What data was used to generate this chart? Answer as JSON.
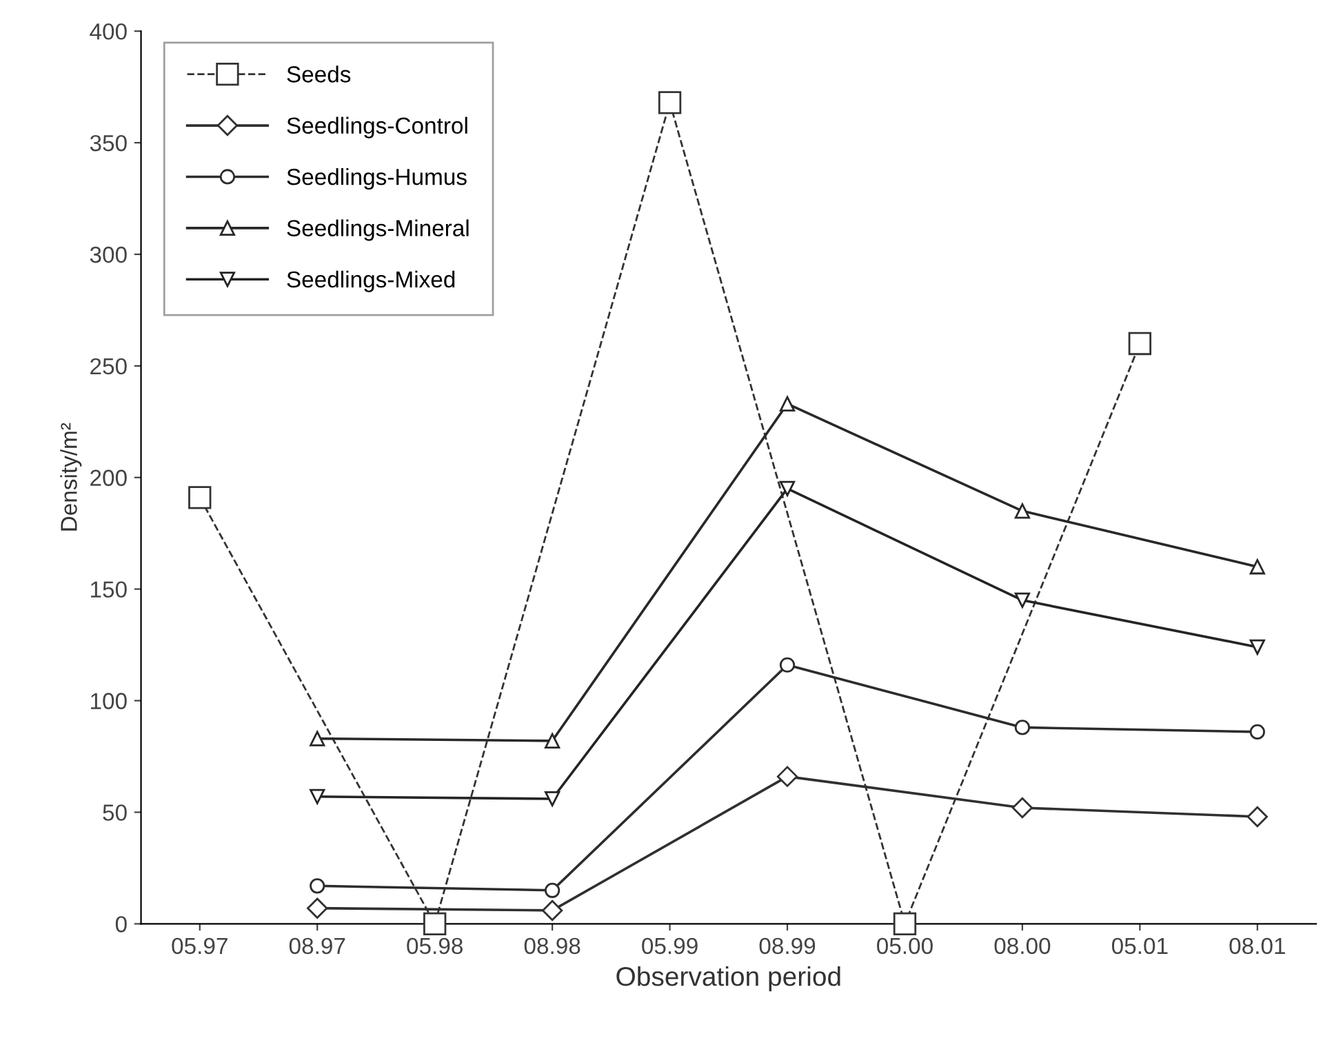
{
  "chart_data": {
    "type": "line",
    "xlabel": "Observation period",
    "ylabel": "Density/m²",
    "categories": [
      "05.97",
      "08.97",
      "05.98",
      "08.98",
      "05.99",
      "08.99",
      "05.00",
      "08.00",
      "05.01",
      "08.01"
    ],
    "ylim": [
      0,
      400
    ],
    "yticks": [
      0,
      50,
      100,
      150,
      200,
      250,
      300,
      350,
      400
    ],
    "grid": false,
    "legend": "top left",
    "series": [
      {
        "name": "Seeds",
        "color": "#333333",
        "marker": "square",
        "line_style": "dashed",
        "values": [
          191,
          null,
          0,
          null,
          368,
          null,
          0,
          null,
          260,
          null
        ]
      },
      {
        "name": "Seedlings-Control",
        "color": "#303030",
        "marker": "diamond",
        "line_style": "solid",
        "values": [
          null,
          7,
          null,
          6,
          null,
          66,
          null,
          52,
          null,
          48
        ]
      },
      {
        "name": "Seedlings-Humus",
        "color": "#2c2c2c",
        "marker": "circle",
        "line_style": "solid",
        "values": [
          null,
          17,
          null,
          15,
          null,
          116,
          null,
          88,
          null,
          86
        ]
      },
      {
        "name": "Seedlings-Mineral",
        "color": "#282828",
        "marker": "triangle",
        "line_style": "solid",
        "values": [
          null,
          83,
          null,
          82,
          null,
          233,
          null,
          185,
          null,
          160
        ]
      },
      {
        "name": "Seedlings-Mixed",
        "color": "#242424",
        "marker": "triangle_down",
        "line_style": "solid",
        "values": [
          null,
          57,
          null,
          56,
          null,
          195,
          null,
          145,
          null,
          124
        ]
      }
    ]
  }
}
